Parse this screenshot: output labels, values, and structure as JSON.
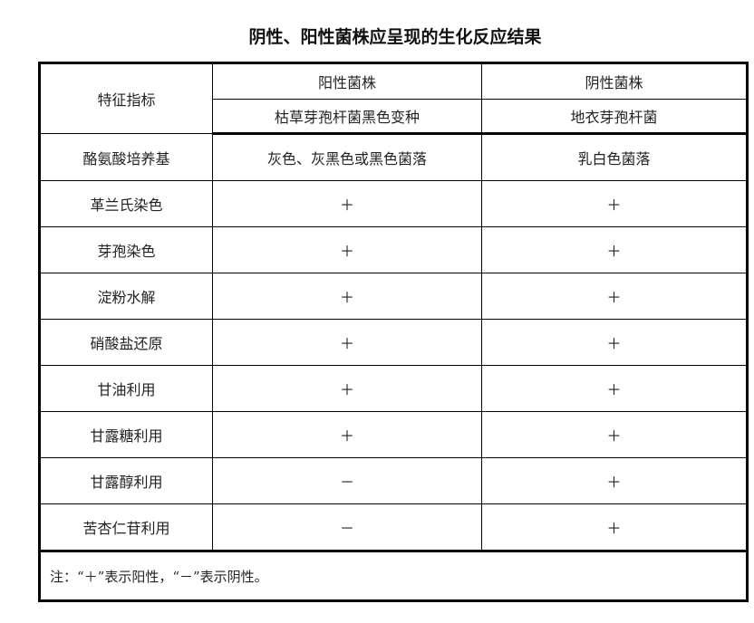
{
  "title": "阴性、阳性菌株应呈现的生化反应结果",
  "header": {
    "feature": "特征指标",
    "positive_group": "阳性菌株",
    "negative_group": "阴性菌株",
    "positive_strain": "枯草芽孢杆菌黑色变种",
    "negative_strain": "地衣芽孢杆菌"
  },
  "rows": [
    {
      "feature": "酪氨酸培养基",
      "positive": "灰色、灰黑色或黑色菌落",
      "negative": "乳白色菌落"
    },
    {
      "feature": "革兰氏染色",
      "positive": "＋",
      "negative": "＋"
    },
    {
      "feature": "芽孢染色",
      "positive": "＋",
      "negative": "＋"
    },
    {
      "feature": "淀粉水解",
      "positive": "＋",
      "negative": "＋"
    },
    {
      "feature": "硝酸盐还原",
      "positive": "＋",
      "negative": "＋"
    },
    {
      "feature": "甘油利用",
      "positive": "＋",
      "negative": "＋"
    },
    {
      "feature": "甘露糖利用",
      "positive": "＋",
      "negative": "＋"
    },
    {
      "feature": "甘露醇利用",
      "positive": "－",
      "negative": "＋"
    },
    {
      "feature": "苦杏仁苷利用",
      "positive": "－",
      "negative": "＋"
    }
  ],
  "note": "注：“＋”表示阳性，“－”表示阴性。"
}
